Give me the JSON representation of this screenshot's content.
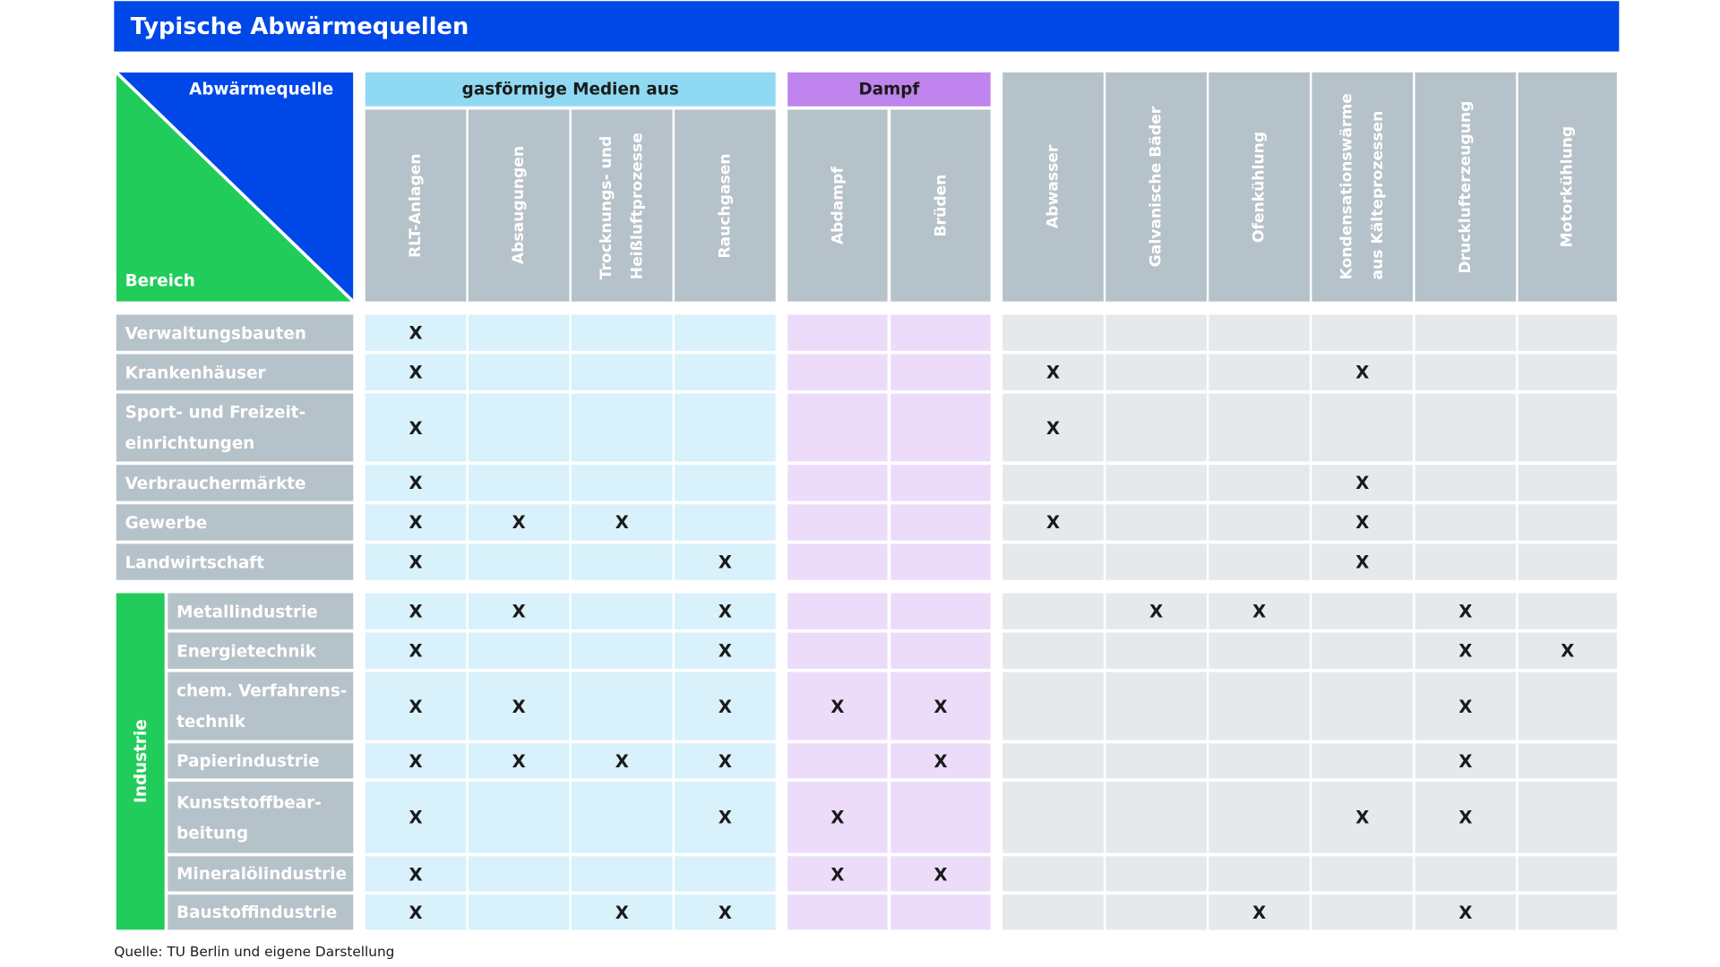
{
  "title": "Typische Abwärmequellen",
  "corner": {
    "top_label": "Abwärmequelle",
    "bottom_label": "Bereich"
  },
  "groups": [
    {
      "label": "gasförmige Medien aus",
      "color": "#8fdaf2",
      "cell_color": "#d8f1fa"
    },
    {
      "label": "Dampf",
      "color": "#c084ee",
      "cell_color": "#ecdcfa"
    },
    {
      "label": "",
      "color": "#b6c2c9",
      "cell_color": "#e6e9eb"
    }
  ],
  "columns": [
    {
      "label": "RLT-Anlagen",
      "group": 0
    },
    {
      "label": "Absaugungen",
      "group": 0
    },
    {
      "label": "Trocknungs- und\nHeißluftprozesse",
      "group": 0
    },
    {
      "label": "Rauchgasen",
      "group": 0
    },
    {
      "label": "Abdampf",
      "group": 1
    },
    {
      "label": "Brüden",
      "group": 1
    },
    {
      "label": "Abwasser",
      "group": 2
    },
    {
      "label": "Galvanische Bäder",
      "group": 2
    },
    {
      "label": "Ofenkühlung",
      "group": 2
    },
    {
      "label": "Kondensationswärme\naus Kälteprozessen",
      "group": 2
    },
    {
      "label": "Drucklufterzeugung",
      "group": 2
    },
    {
      "label": "Motorkühlung",
      "group": 2
    }
  ],
  "industry_label": "Industrie",
  "industry_color": "#22cc5a",
  "rows": [
    {
      "label": "Verwaltungsbauten",
      "industry": false,
      "marks": [
        "X",
        "",
        "",
        "",
        "",
        "",
        "",
        "",
        "",
        "",
        "",
        ""
      ]
    },
    {
      "label": "Krankenhäuser",
      "industry": false,
      "marks": [
        "X",
        "",
        "",
        "",
        "",
        "",
        "X",
        "",
        "",
        "X",
        "",
        ""
      ]
    },
    {
      "label": "Sport- und Freizeit-\neinrichtungen",
      "industry": false,
      "marks": [
        "X",
        "",
        "",
        "",
        "",
        "",
        "X",
        "",
        "",
        "",
        "",
        ""
      ]
    },
    {
      "label": "Verbrauchermärkte",
      "industry": false,
      "marks": [
        "X",
        "",
        "",
        "",
        "",
        "",
        "",
        "",
        "",
        "X",
        "",
        ""
      ]
    },
    {
      "label": "Gewerbe",
      "industry": false,
      "marks": [
        "X",
        "X",
        "X",
        "",
        "",
        "",
        "X",
        "",
        "",
        "X",
        "",
        ""
      ]
    },
    {
      "label": "Landwirtschaft",
      "industry": false,
      "marks": [
        "X",
        "",
        "",
        "X",
        "",
        "",
        "",
        "",
        "",
        "X",
        "",
        ""
      ]
    },
    {
      "label": "Metallindustrie",
      "industry": true,
      "marks": [
        "X",
        "X",
        "",
        "X",
        "",
        "",
        "",
        "X",
        "X",
        "",
        "X",
        ""
      ]
    },
    {
      "label": "Energietechnik",
      "industry": true,
      "marks": [
        "X",
        "",
        "",
        "X",
        "",
        "",
        "",
        "",
        "",
        "",
        "X",
        "X"
      ]
    },
    {
      "label": "chem. Verfahrens-\ntechnik",
      "industry": true,
      "marks": [
        "X",
        "X",
        "",
        "X",
        "X",
        "X",
        "",
        "",
        "",
        "",
        "X",
        ""
      ]
    },
    {
      "label": "Papierindustrie",
      "industry": true,
      "marks": [
        "X",
        "X",
        "X",
        "X",
        "",
        "X",
        "",
        "",
        "",
        "",
        "X",
        ""
      ]
    },
    {
      "label": "Kunststoffbear-\nbeitung",
      "industry": true,
      "marks": [
        "X",
        "",
        "",
        "X",
        "X",
        "",
        "",
        "",
        "",
        "X",
        "X",
        ""
      ]
    },
    {
      "label": "Mineralölindustrie",
      "industry": true,
      "marks": [
        "X",
        "",
        "",
        "",
        "X",
        "X",
        "",
        "",
        "",
        "",
        "",
        ""
      ]
    },
    {
      "label": "Baustoffindustrie",
      "industry": true,
      "marks": [
        "X",
        "",
        "X",
        "X",
        "",
        "",
        "",
        "",
        "X",
        "",
        "X",
        ""
      ]
    }
  ],
  "source": "Quelle: TU Berlin und eigene Darstellung"
}
